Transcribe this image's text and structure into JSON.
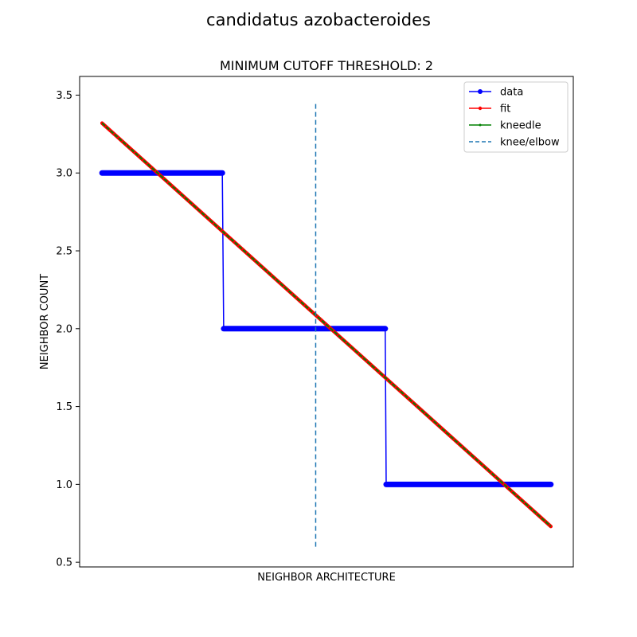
{
  "figure": {
    "suptitle": "candidatus azobacteroides"
  },
  "chart_data": {
    "type": "line",
    "title": "MINIMUM CUTOFF THRESHOLD: 2",
    "xlabel": "NEIGHBOR ARCHITECTURE",
    "ylabel": "NEIGHBOR COUNT",
    "xlim": [
      -0.05,
      1.05
    ],
    "ylim": [
      0.47,
      3.62
    ],
    "yticks": [
      0.5,
      1.0,
      1.5,
      2.0,
      2.5,
      3.0,
      3.5
    ],
    "ytick_labels": [
      "0.5",
      "1.0",
      "1.5",
      "2.0",
      "2.5",
      "3.0",
      "3.5"
    ],
    "xticks_shown": false,
    "grid": false,
    "legend_position": "top-right",
    "series": [
      {
        "name": "data",
        "color": "#0000ff",
        "style": "solid-dots",
        "steps": [
          {
            "x_start": 0.0,
            "x_end": 0.268,
            "y": 3
          },
          {
            "x_start": 0.271,
            "x_end": 0.631,
            "y": 2
          },
          {
            "x_start": 0.633,
            "x_end": 1.0,
            "y": 1
          }
        ]
      },
      {
        "name": "fit",
        "color": "#ff0000",
        "style": "solid-dots",
        "x": [
          0.0,
          1.0
        ],
        "y": [
          3.32,
          0.73
        ]
      },
      {
        "name": "kneedle",
        "color": "#008000",
        "style": "solid-small-dots",
        "x": [
          0.0,
          1.0
        ],
        "y": [
          3.32,
          0.73
        ]
      }
    ],
    "vline": {
      "name": "knee/elbow",
      "color": "#1f77b4",
      "style": "dashed",
      "x": 0.476,
      "ymin": 0.6,
      "ymax": 3.45
    }
  }
}
